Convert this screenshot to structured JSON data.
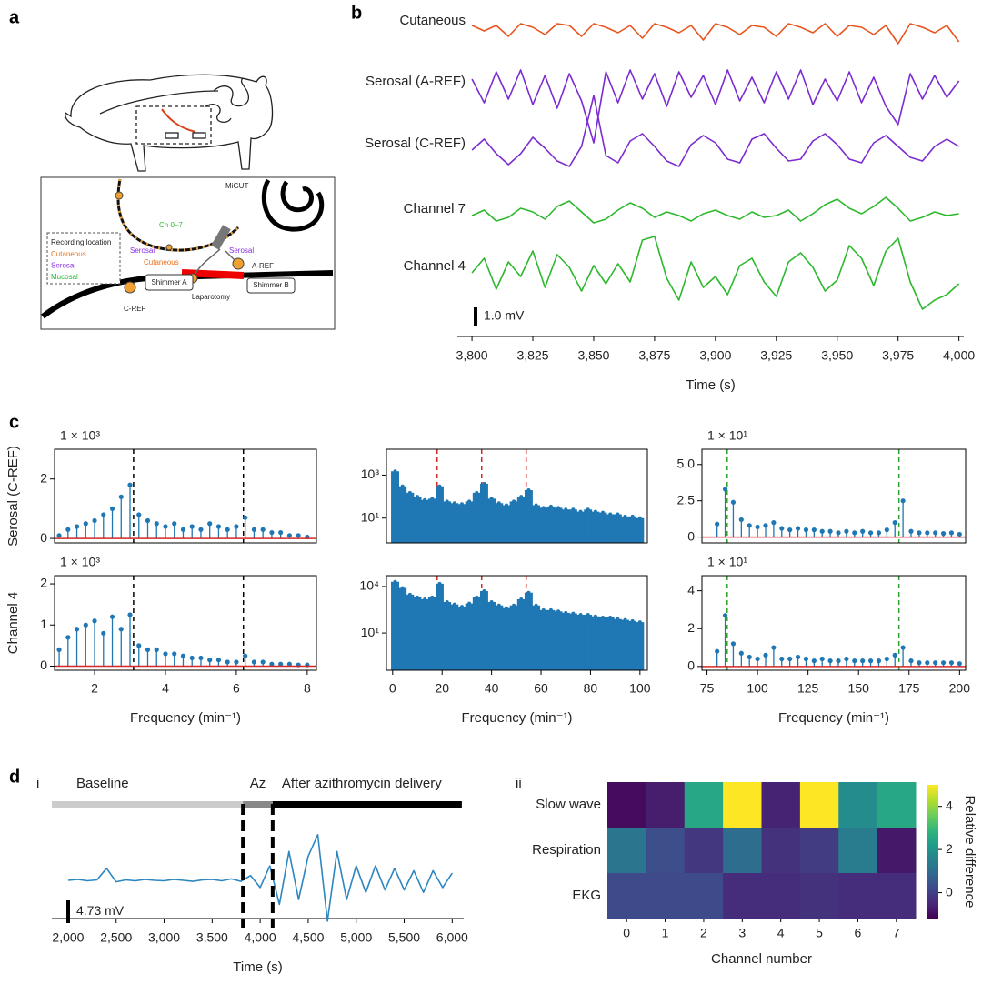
{
  "panel_labels": [
    "a",
    "b",
    "c",
    "d"
  ],
  "diagram": {
    "device": "MiGUT",
    "channels": "Ch 0–7",
    "serosal_left": "Serosal",
    "serosal_right": "Serosal",
    "cutaneous": "Cutaneous",
    "a_ref": "A-REF",
    "shimmer_a": "Shimmer A",
    "laparotomy": "Laparotomy",
    "shimmer_b": "Shimmer B",
    "c_ref": "C-REF",
    "legend": {
      "title": "Recording location",
      "items": [
        {
          "name": "Cutaneous",
          "color": "#e8711e"
        },
        {
          "name": "Serosal",
          "color": "#8a2be2"
        },
        {
          "name": "Mucosal",
          "color": "#2db82d"
        }
      ]
    }
  },
  "chart_data": [
    {
      "type": "line",
      "x": [
        3800,
        3805,
        3810,
        3815,
        3820,
        3825,
        3830,
        3835,
        3840,
        3845,
        3850,
        3855,
        3860,
        3865,
        3870,
        3875,
        3880,
        3885,
        3890,
        3895,
        3900,
        3905,
        3910,
        3915,
        3920,
        3925,
        3930,
        3935,
        3940,
        3945,
        3950,
        3955,
        3960,
        3965,
        3970,
        3975,
        3980,
        3985,
        3990,
        3995,
        4000
      ],
      "xlim": [
        3794,
        4002
      ],
      "xticks": [
        {
          "value": 3800,
          "label": "3,800"
        },
        {
          "value": 3825,
          "label": "3,825"
        },
        {
          "value": 3850,
          "label": "3,850"
        },
        {
          "value": 3875,
          "label": "3,875"
        },
        {
          "value": 3900,
          "label": "3,900"
        },
        {
          "value": 3925,
          "label": "3,925"
        },
        {
          "value": 3950,
          "label": "3,950"
        },
        {
          "value": 3975,
          "label": "3,975"
        },
        {
          "value": 4000,
          "label": "4,000"
        }
      ],
      "xlabel": "Time (s)",
      "scale_bar": {
        "value": 1.0,
        "label": "1.0 mV"
      },
      "series": [
        {
          "name": "Cutaneous",
          "color": "#e8541e",
          "values": [
            0.1,
            -0.2,
            0.1,
            -0.5,
            0.2,
            0,
            -0.4,
            0.2,
            0.1,
            -0.5,
            0.2,
            0,
            -0.3,
            0.1,
            -0.6,
            0.2,
            0,
            -0.3,
            0.1,
            -0.7,
            0.2,
            0,
            -0.4,
            0.1,
            0,
            -0.5,
            0.2,
            0,
            -0.3,
            0.2,
            -0.5,
            0.1,
            0,
            -0.4,
            0.1,
            -0.9,
            0.2,
            0,
            -0.3,
            0.1,
            -0.8
          ]
        },
        {
          "name": "Serosal (A-REF)",
          "color": "#7b2bd1",
          "values": [
            0.5,
            -0.8,
            0.9,
            -0.6,
            1.0,
            -0.9,
            0.7,
            -1.1,
            0.8,
            -0.7,
            -3.0,
            0.9,
            -0.8,
            1.0,
            -0.6,
            0.8,
            -1.0,
            0.9,
            -0.5,
            0.7,
            -0.9,
            1.0,
            -0.7,
            0.6,
            -0.8,
            0.9,
            -0.6,
            1.0,
            -0.9,
            0.5,
            -0.7,
            0.9,
            -0.8,
            0.6,
            -1.0,
            -2.0,
            0.8,
            -0.6,
            0.7,
            -0.5,
            0.4
          ]
        },
        {
          "name": "Serosal (C-REF)",
          "color": "#7b2bd1",
          "values": [
            0,
            0.6,
            -0.2,
            -0.8,
            -0.2,
            0.7,
            0.1,
            -0.6,
            -0.9,
            0.2,
            3.0,
            -0.3,
            -0.7,
            0.5,
            0.9,
            0.2,
            -0.6,
            -0.9,
            0.3,
            0.8,
            0.4,
            -0.5,
            -0.7,
            0.6,
            0.9,
            0.1,
            -0.6,
            -0.5,
            0.5,
            0.9,
            0.3,
            -0.5,
            -0.7,
            0.4,
            0.8,
            0.2,
            -0.4,
            -0.6,
            0.2,
            0.6,
            0.2
          ]
        },
        {
          "name": "Channel 7",
          "color": "#2db82d",
          "values": [
            0,
            0.3,
            -0.3,
            -0.1,
            0.4,
            0.2,
            -0.2,
            0.5,
            0.8,
            0.2,
            -0.4,
            -0.2,
            0.3,
            0.7,
            0.4,
            -0.1,
            0.2,
            0.0,
            -0.3,
            0.1,
            0.3,
            0,
            -0.2,
            0.2,
            -0.1,
            0.0,
            0.3,
            -0.3,
            0.1,
            0.6,
            0.9,
            0.4,
            0.1,
            0.5,
            1.0,
            0.4,
            -0.3,
            -0.1,
            0.2,
            0.0,
            0.1
          ]
        },
        {
          "name": "Channel 4",
          "color": "#2db82d",
          "values": [
            0,
            0.8,
            -0.9,
            0.6,
            -0.2,
            1.2,
            -0.8,
            1.0,
            0.3,
            -1.0,
            0.4,
            -0.6,
            0.5,
            -0.5,
            1.8,
            2.0,
            -0.3,
            -1.5,
            0.6,
            -0.8,
            -0.2,
            -1.2,
            0.4,
            0.8,
            -0.5,
            -1.3,
            0.6,
            1.1,
            0.3,
            -1.0,
            -0.4,
            1.5,
            0.8,
            -0.7,
            1.2,
            1.9,
            -0.5,
            -2.0,
            -1.5,
            -1.2,
            -0.6
          ]
        }
      ]
    },
    {
      "type": "stem",
      "ylabel": "Serosal (C-REF)",
      "multiplier": "1 × 10³",
      "x": [
        1,
        1.25,
        1.5,
        1.75,
        2,
        2.25,
        2.5,
        2.75,
        3,
        3.25,
        3.5,
        3.75,
        4,
        4.25,
        4.5,
        4.75,
        5,
        5.25,
        5.5,
        5.75,
        6,
        6.25,
        6.5,
        6.75,
        7,
        7.25,
        7.5,
        7.75,
        8
      ],
      "values": [
        0.1,
        0.3,
        0.4,
        0.5,
        0.6,
        0.8,
        1.0,
        1.4,
        1.8,
        0.8,
        0.6,
        0.5,
        0.4,
        0.5,
        0.3,
        0.4,
        0.3,
        0.5,
        0.4,
        0.3,
        0.4,
        0.7,
        0.3,
        0.3,
        0.2,
        0.2,
        0.1,
        0.1,
        0.05
      ],
      "xlim": [
        0.87,
        8.26
      ],
      "ylim": [
        -0.15,
        3.0
      ],
      "yticks": [
        0,
        2
      ],
      "vlines": [
        3.1,
        6.2
      ],
      "vline_color": "#000000",
      "color": "#1f77b4",
      "baseline_color": "#d62728"
    },
    {
      "type": "stem",
      "yscale": "log",
      "x": [
        1,
        4,
        7,
        10,
        13,
        16,
        19,
        22,
        25,
        28,
        31,
        34,
        37,
        40,
        43,
        46,
        49,
        52,
        55,
        58,
        61,
        64,
        67,
        70,
        73,
        76,
        79,
        82,
        85,
        88,
        91,
        94,
        97,
        100
      ],
      "values": [
        1500,
        300,
        150,
        100,
        70,
        80,
        300,
        60,
        50,
        45,
        60,
        150,
        400,
        80,
        50,
        40,
        60,
        100,
        200,
        40,
        30,
        35,
        30,
        25,
        25,
        20,
        25,
        20,
        18,
        15,
        15,
        12,
        12,
        10
      ],
      "xlim": [
        -2.5,
        103
      ],
      "ylim": [
        0.7,
        16000
      ],
      "yticks": [
        {
          "value": 10,
          "label": "10¹"
        },
        {
          "value": 1000,
          "label": "10³"
        }
      ],
      "vlines": [
        18,
        36,
        54
      ],
      "vline_color": "#d62728",
      "color": "#1f77b4"
    },
    {
      "type": "stem",
      "multiplier": "1 × 10¹",
      "x": [
        80,
        84,
        88,
        92,
        96,
        100,
        104,
        108,
        112,
        116,
        120,
        124,
        128,
        132,
        136,
        140,
        144,
        148,
        152,
        156,
        160,
        164,
        168,
        172,
        176,
        180,
        184,
        188,
        192,
        196,
        200
      ],
      "values": [
        0.9,
        3.3,
        2.4,
        1.2,
        0.8,
        0.7,
        0.8,
        1.0,
        0.6,
        0.5,
        0.6,
        0.5,
        0.5,
        0.4,
        0.4,
        0.3,
        0.4,
        0.3,
        0.4,
        0.3,
        0.3,
        0.5,
        1.0,
        2.5,
        0.4,
        0.3,
        0.3,
        0.3,
        0.25,
        0.3,
        0.2
      ],
      "xlim": [
        72.5,
        203
      ],
      "ylim": [
        -0.4,
        6.05
      ],
      "yticks": [
        0,
        2.5,
        {
          "value": 5,
          "label": "5.0"
        }
      ],
      "vlines": [
        85,
        170
      ],
      "vline_color": "#2ca02c",
      "color": "#1f77b4",
      "baseline_color": "#d62728"
    },
    {
      "type": "stem",
      "ylabel": "Channel 4",
      "multiplier": "1 × 10³",
      "xlabel": "Frequency (min⁻¹)",
      "x": [
        1,
        1.25,
        1.5,
        1.75,
        2,
        2.25,
        2.5,
        2.75,
        3,
        3.25,
        3.5,
        3.75,
        4,
        4.25,
        4.5,
        4.75,
        5,
        5.25,
        5.5,
        5.75,
        6,
        6.25,
        6.5,
        6.75,
        7,
        7.25,
        7.5,
        7.75,
        8
      ],
      "values": [
        0.4,
        0.7,
        0.9,
        1.0,
        1.1,
        0.8,
        1.2,
        0.9,
        1.25,
        0.5,
        0.4,
        0.4,
        0.3,
        0.3,
        0.25,
        0.2,
        0.2,
        0.15,
        0.15,
        0.1,
        0.1,
        0.25,
        0.1,
        0.1,
        0.05,
        0.05,
        0.05,
        0.03,
        0.03
      ],
      "xlim": [
        0.87,
        8.26
      ],
      "ylim": [
        -0.1,
        2.2
      ],
      "yticks": [
        0,
        1,
        2
      ],
      "xticks": [
        2,
        4,
        6,
        8
      ],
      "vlines": [
        3.1,
        6.2
      ],
      "vline_color": "#000000",
      "color": "#1f77b4",
      "baseline_color": "#d62728"
    },
    {
      "type": "stem",
      "yscale": "log",
      "xlabel": "Frequency (min⁻¹)",
      "x": [
        1,
        4,
        7,
        10,
        13,
        16,
        19,
        22,
        25,
        28,
        31,
        34,
        37,
        40,
        43,
        46,
        49,
        52,
        55,
        58,
        61,
        64,
        67,
        70,
        73,
        76,
        79,
        82,
        85,
        88,
        91,
        94,
        97,
        100
      ],
      "values": [
        20000,
        8000,
        3000,
        2000,
        1500,
        2000,
        15000,
        1000,
        700,
        500,
        800,
        2000,
        5000,
        1000,
        600,
        400,
        600,
        1500,
        4000,
        600,
        300,
        300,
        250,
        200,
        180,
        150,
        150,
        120,
        100,
        100,
        80,
        70,
        60,
        50
      ],
      "xlim": [
        -2.5,
        103
      ],
      "ylim": [
        0.04,
        50000
      ],
      "yticks": [
        {
          "value": 10,
          "label": "10¹"
        },
        {
          "value": 10000,
          "label": "10⁴"
        }
      ],
      "xticks": [
        0,
        20,
        40,
        60,
        80,
        100
      ],
      "vlines": [
        18,
        36,
        54
      ],
      "vline_color": "#d62728",
      "color": "#1f77b4"
    },
    {
      "type": "stem",
      "multiplier": "1 × 10¹",
      "xlabel": "Frequency (min⁻¹)",
      "x": [
        80,
        84,
        88,
        92,
        96,
        100,
        104,
        108,
        112,
        116,
        120,
        124,
        128,
        132,
        136,
        140,
        144,
        148,
        152,
        156,
        160,
        164,
        168,
        172,
        176,
        180,
        184,
        188,
        192,
        196,
        200
      ],
      "values": [
        0.8,
        2.7,
        1.2,
        0.7,
        0.5,
        0.4,
        0.6,
        1.0,
        0.4,
        0.4,
        0.5,
        0.4,
        0.3,
        0.4,
        0.3,
        0.3,
        0.4,
        0.3,
        0.3,
        0.3,
        0.3,
        0.4,
        0.6,
        1.0,
        0.3,
        0.2,
        0.2,
        0.2,
        0.2,
        0.2,
        0.15
      ],
      "xlim": [
        72.5,
        203
      ],
      "ylim": [
        -0.2,
        4.8
      ],
      "yticks": [
        0,
        2,
        4
      ],
      "xticks": [
        75,
        100,
        125,
        150,
        175,
        200
      ],
      "vlines": [
        85,
        170
      ],
      "vline_color": "#2ca02c",
      "color": "#1f77b4",
      "baseline_color": "#d62728"
    },
    {
      "type": "line",
      "label": "i",
      "x": [
        2000,
        2100,
        2200,
        2300,
        2400,
        2500,
        2600,
        2700,
        2800,
        2900,
        3000,
        3100,
        3200,
        3300,
        3400,
        3500,
        3600,
        3700,
        3800,
        3900,
        4000,
        4100,
        4200,
        4300,
        4400,
        4500,
        4600,
        4700,
        4800,
        4900,
        5000,
        5100,
        5200,
        5300,
        5400,
        5500,
        5600,
        5700,
        5800,
        5900,
        6000
      ],
      "xlim": [
        1830,
        6120
      ],
      "xticks": [
        {
          "value": 2000,
          "label": "2,000"
        },
        {
          "value": 2500,
          "label": "2,500"
        },
        {
          "value": 3000,
          "label": "3,000"
        },
        {
          "value": 3500,
          "label": "3,500"
        },
        {
          "value": 4000,
          "label": "4,000"
        },
        {
          "value": 4500,
          "label": "4,500"
        },
        {
          "value": 5000,
          "label": "5,000"
        },
        {
          "value": 5500,
          "label": "5,500"
        },
        {
          "value": 6000,
          "label": "6,000"
        }
      ],
      "xlabel": "Time (s)",
      "scale_bar": {
        "value": 4.73,
        "label": "4.73 mV"
      },
      "series": [
        {
          "color": "#2e86c1",
          "values": [
            0,
            0.2,
            -0.1,
            0.1,
            2.5,
            -0.3,
            0.1,
            -0.1,
            0.2,
            0,
            -0.1,
            0.2,
            0,
            -0.2,
            0.1,
            0.2,
            -0.1,
            0.3,
            -0.2,
            1.0,
            -1.5,
            3,
            -5,
            6,
            -4,
            5,
            9.5,
            -8.5,
            6,
            -4,
            3,
            -2.5,
            3,
            -2,
            2.5,
            -2,
            2,
            -2.5,
            2,
            -1.5,
            1.5
          ]
        }
      ],
      "phases": [
        {
          "name": "Baseline",
          "start": 1830,
          "end": 3820,
          "color": "#cccccc"
        },
        {
          "name": "Az",
          "start": 3820,
          "end": 4130,
          "color": "#888888"
        },
        {
          "name": "After azithromycin delivery",
          "start": 4130,
          "end": 6100,
          "color": "#000000"
        }
      ]
    },
    {
      "type": "heatmap",
      "label": "ii",
      "rows": [
        "Slow wave",
        "Respiration",
        "EKG"
      ],
      "categories": [
        0,
        1,
        2,
        3,
        4,
        5,
        6,
        7
      ],
      "values": [
        [
          -1.0,
          -0.7,
          2.5,
          5.0,
          -0.6,
          5.0,
          1.8,
          2.5
        ],
        [
          1.2,
          0.3,
          -0.2,
          1.0,
          -0.3,
          -0.1,
          1.4,
          -0.8
        ],
        [
          0.2,
          0.2,
          0.2,
          -0.4,
          -0.4,
          -0.3,
          -0.4,
          -0.4
        ]
      ],
      "vlim": [
        -1.2,
        5
      ],
      "cticks": [
        0,
        2,
        4
      ],
      "colorbar_label": "Relative difference",
      "xlabel": "Channel number",
      "colormap": [
        "#440154",
        "#482878",
        "#3e4989",
        "#31688e",
        "#26828e",
        "#1f9e89",
        "#35b779",
        "#6ece58",
        "#b5de2b",
        "#fde725"
      ]
    }
  ]
}
